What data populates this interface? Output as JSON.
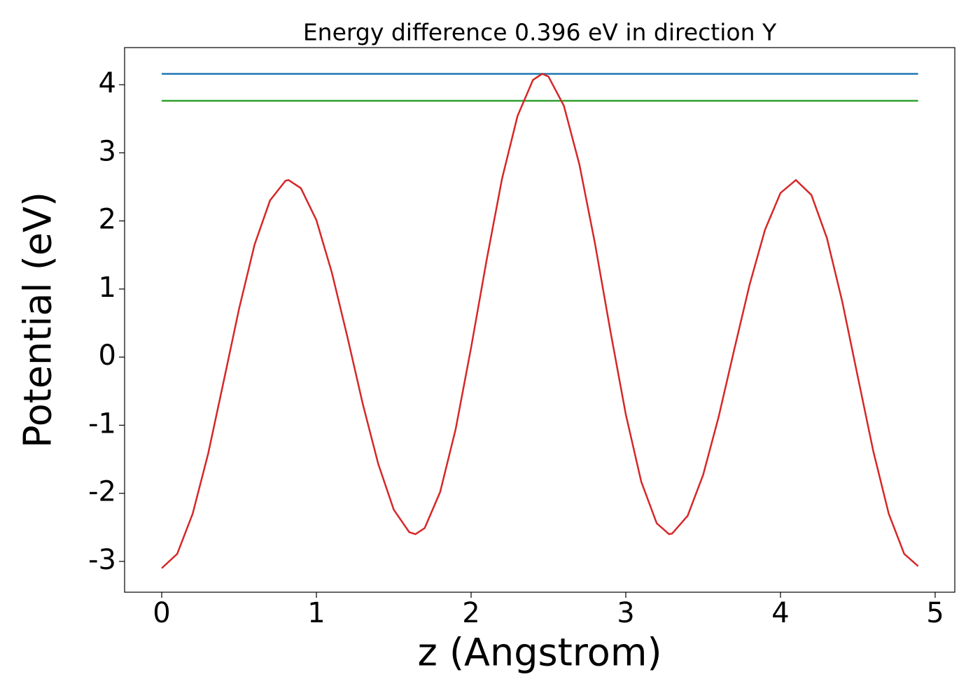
{
  "chart_data": {
    "type": "line",
    "title": "Energy difference 0.396 eV in direction Y",
    "xlabel": "z (Angstrom)",
    "ylabel": "Potential (eV)",
    "xlim": [
      -0.24,
      5.127
    ],
    "ylim": [
      -3.452,
      4.545
    ],
    "xticks": [
      0,
      1,
      2,
      3,
      4,
      5
    ],
    "yticks": [
      -3,
      -2,
      -1,
      0,
      1,
      2,
      3,
      4
    ],
    "series": [
      {
        "color": "#1f77b4",
        "x": [
          0,
          4.89
        ],
        "values": [
          4.16,
          4.16
        ]
      },
      {
        "color": "#2ca02c",
        "x": [
          0,
          4.89
        ],
        "values": [
          3.764,
          3.764
        ]
      },
      {
        "color": "#d62728",
        "x": [
          0,
          0.1,
          0.2,
          0.3,
          0.4,
          0.5,
          0.6,
          0.7,
          0.8,
          0.82,
          0.9,
          1.0,
          1.1,
          1.2,
          1.3,
          1.4,
          1.5,
          1.6,
          1.64,
          1.7,
          1.8,
          1.9,
          2.0,
          2.1,
          2.2,
          2.3,
          2.4,
          2.46,
          2.5,
          2.6,
          2.7,
          2.8,
          2.9,
          3.0,
          3.1,
          3.2,
          3.28,
          3.3,
          3.4,
          3.5,
          3.6,
          3.7,
          3.8,
          3.9,
          4.0,
          4.1,
          4.2,
          4.3,
          4.4,
          4.5,
          4.6,
          4.7,
          4.8,
          4.89
        ],
        "values": [
          -3.1,
          -2.89,
          -2.3,
          -1.42,
          -0.36,
          0.71,
          1.65,
          2.3,
          2.59,
          2.6,
          2.48,
          2.01,
          1.24,
          0.3,
          -0.69,
          -1.57,
          -2.24,
          -2.57,
          -2.6,
          -2.51,
          -1.98,
          -1.06,
          0.14,
          1.42,
          2.62,
          3.54,
          4.07,
          4.16,
          4.12,
          3.69,
          2.83,
          1.68,
          0.39,
          -0.84,
          -1.83,
          -2.44,
          -2.6,
          -2.59,
          -2.33,
          -1.73,
          -0.88,
          0.1,
          1.06,
          1.87,
          2.41,
          2.6,
          2.38,
          1.75,
          0.81,
          -0.29,
          -1.38,
          -2.3,
          -2.89,
          -3.07
        ]
      }
    ]
  }
}
